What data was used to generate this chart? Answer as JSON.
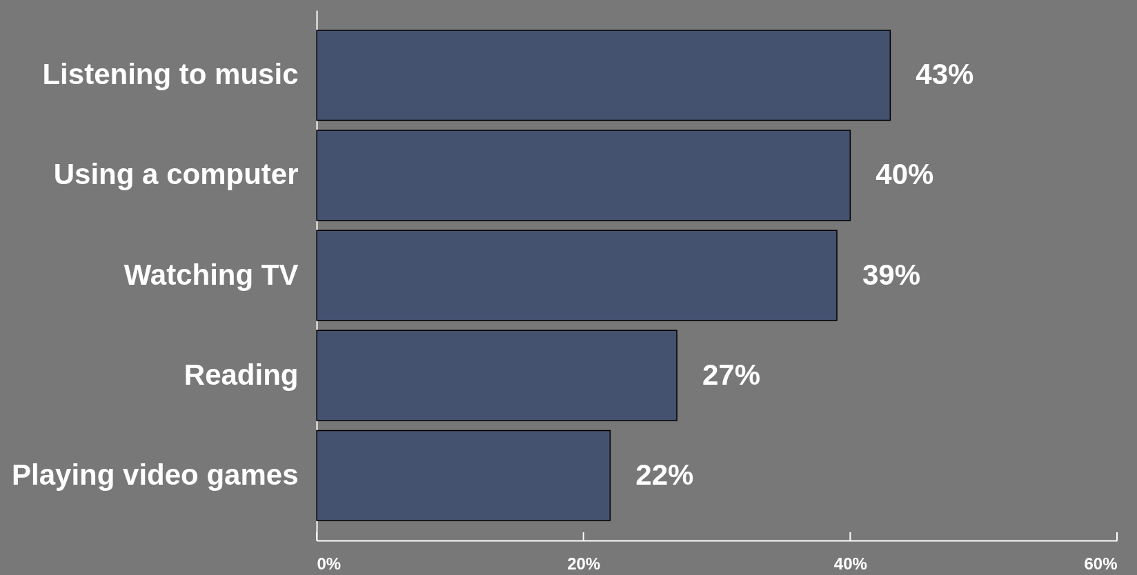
{
  "chart_data": {
    "type": "bar",
    "orientation": "horizontal",
    "categories": [
      "Listening to music",
      "Using a computer",
      "Watching TV",
      "Reading",
      "Playing video games"
    ],
    "values": [
      43,
      40,
      39,
      27,
      22
    ],
    "value_labels": [
      "43%",
      "40%",
      "39%",
      "27%",
      "22%"
    ],
    "color": "#44516f",
    "xlim": [
      0,
      60
    ],
    "xticks": [
      {
        "value": 0,
        "label": "0%"
      },
      {
        "value": 20,
        "label": "20%"
      },
      {
        "value": 40,
        "label": "40%"
      },
      {
        "value": 60,
        "label": "60%"
      }
    ]
  }
}
